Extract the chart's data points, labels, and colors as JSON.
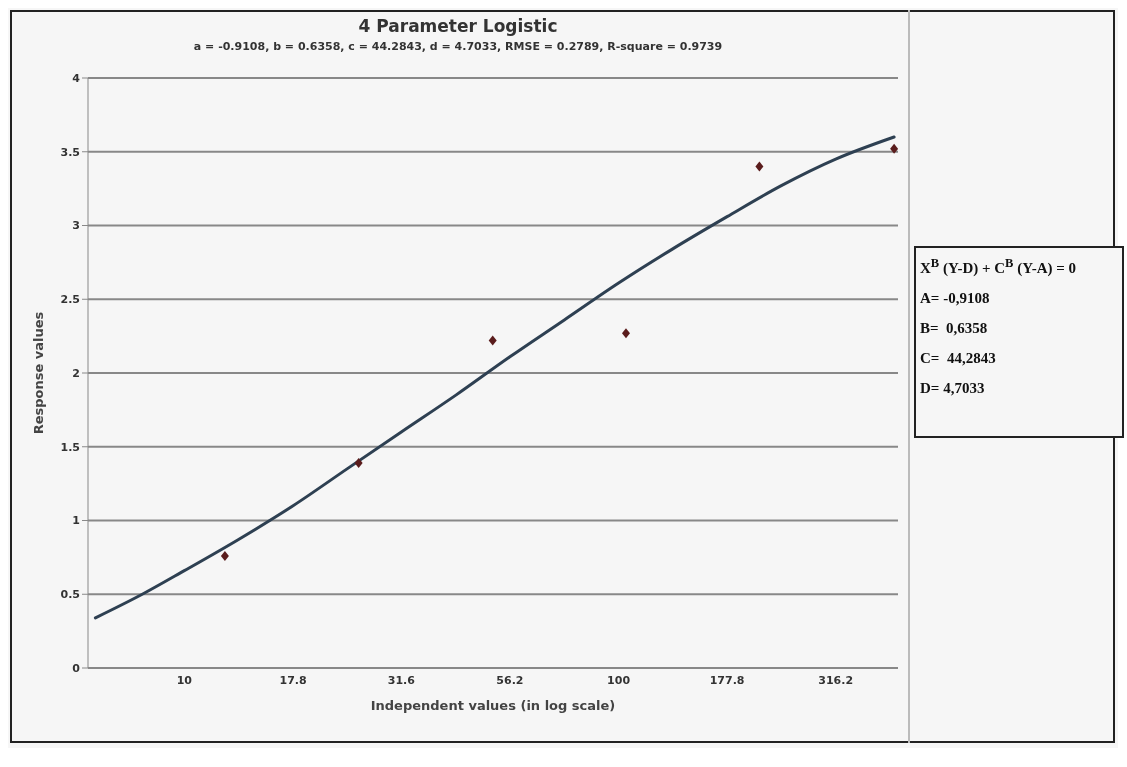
{
  "chart_data": {
    "type": "scatter",
    "title": "4 Parameter Logistic",
    "subtitle": "a = -0.9108, b = 0.6358, c = 44.2843, d = 4.7033, RMSE = 0.2789, R-square = 0.9739",
    "xlabel": "Independent values (in log scale)",
    "ylabel": "Response values",
    "series": [
      {
        "color": "#5a1c1c",
        "marker": "diamond",
        "x": [
          12.4,
          25.2,
          51.3,
          104,
          211,
          431
        ],
        "values": [
          0.76,
          1.39,
          2.22,
          2.27,
          3.4,
          3.52
        ]
      },
      {
        "type": "line",
        "color": "#2e4052",
        "marker": "none",
        "x": [
          6.24,
          8,
          10,
          13.3,
          17.8,
          23.7,
          31.6,
          42.2,
          56.2,
          75,
          100,
          133,
          177.8,
          237,
          316.2,
          431
        ],
        "values": [
          0.34,
          0.5,
          0.66,
          0.87,
          1.1,
          1.35,
          1.6,
          1.85,
          2.11,
          2.36,
          2.61,
          2.84,
          3.06,
          3.27,
          3.45,
          3.6
        ]
      }
    ],
    "log": "x",
    "xlim": [
      6,
      440
    ],
    "xticks": [
      10,
      17.8,
      31.6,
      56.2,
      100,
      177.8,
      316.2
    ],
    "ylim": [
      0,
      4
    ],
    "yticks": [
      0,
      0.5,
      1,
      1.5,
      2,
      2.5,
      3,
      3.5,
      4
    ],
    "grid": "y",
    "legend": false,
    "annotations": [
      "X$^{B}$ (Y-D) + C$^{B}$ (Y-A) = 0",
      "A= -0,9108",
      "B=  0,6358",
      "C=  44,2843",
      "D= 4,7033"
    ]
  }
}
